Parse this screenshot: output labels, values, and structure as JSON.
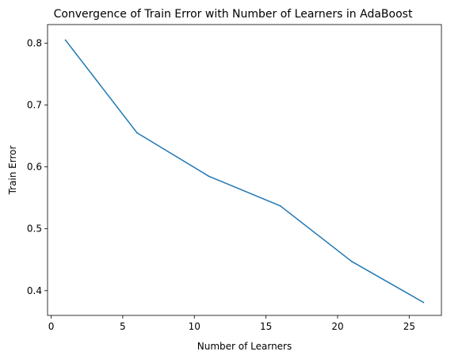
{
  "chart_data": {
    "type": "line",
    "title": "Convergence of Train Error with Number of Learners in AdaBoost",
    "xlabel": "Number of Learners",
    "ylabel": "Train Error",
    "xlim": [
      -0.25,
      27.25
    ],
    "ylim": [
      0.36,
      0.83
    ],
    "xticks": [
      0,
      5,
      10,
      15,
      20,
      25
    ],
    "yticks": [
      0.4,
      0.5,
      0.6,
      0.7,
      0.8
    ],
    "xtick_labels": [
      "0",
      "5",
      "10",
      "15",
      "20",
      "25"
    ],
    "ytick_labels": [
      "0.4",
      "0.5",
      "0.6",
      "0.7",
      "0.8"
    ],
    "grid": false,
    "series": [
      {
        "color": "#1f77b4",
        "x": [
          1,
          6,
          11,
          16,
          21,
          26
        ],
        "y": [
          0.805,
          0.655,
          0.585,
          0.537,
          0.447,
          0.381
        ]
      }
    ]
  }
}
